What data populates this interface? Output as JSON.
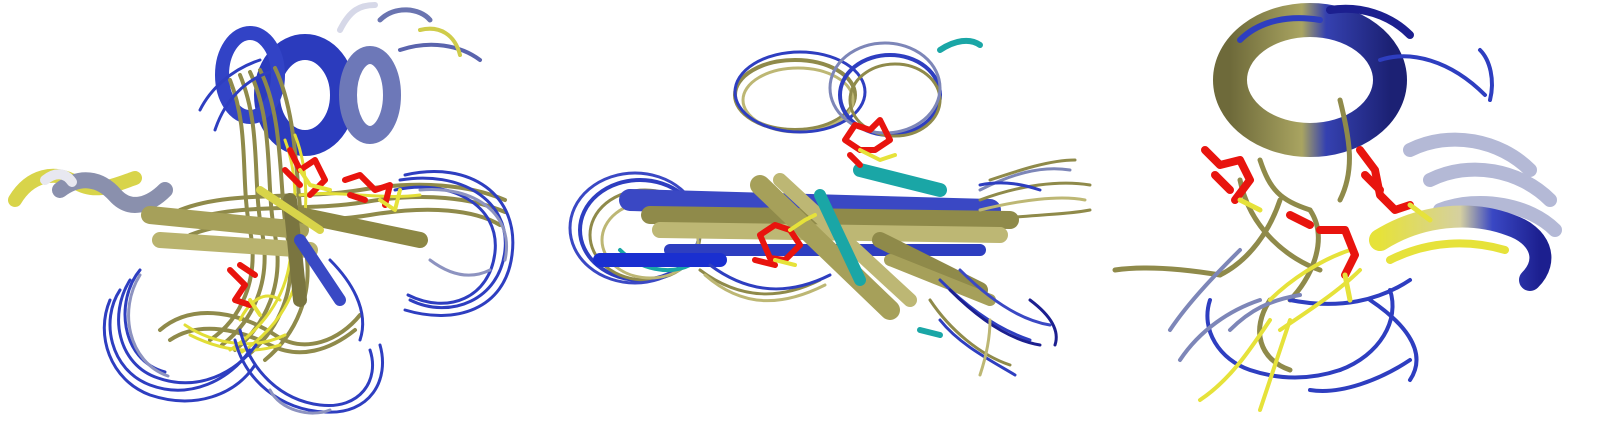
{
  "figure": {
    "panels": [
      {
        "view": "ensemble-top"
      },
      {
        "view": "ensemble-side"
      },
      {
        "view": "single-model-detail"
      }
    ]
  },
  "colors": {
    "olive": "#8f8a4a",
    "khaki": "#bdb774",
    "yellow": "#e6e23a",
    "blue": "#2f3fc0",
    "darkblue": "#1c1f8f",
    "slate": "#7d86b8",
    "grey": "#9aa0b8",
    "red": "#e8140e",
    "teal": "#1aa6a6"
  }
}
